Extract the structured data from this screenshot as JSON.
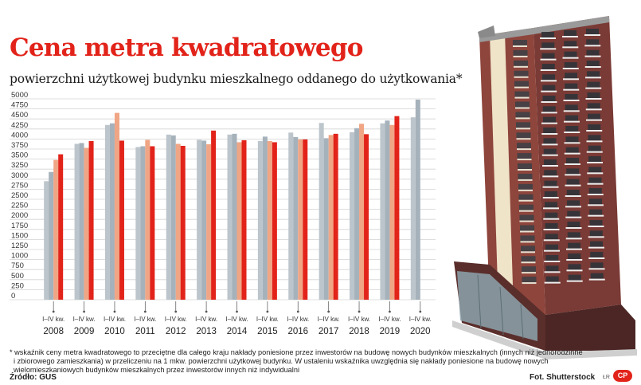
{
  "title": "Cena metra kwadratowego",
  "subtitle": "powierzchni użytkowej budynku mieszkalnego oddanego do użytkowania*",
  "footnote": {
    "line1": "* wskaźnik ceny metra kwadratowego to przeciętne dla całego kraju nakłady poniesione przez inwestorów na budowę nowych budynków mieszkalnych (innych niż jednorodzinne",
    "line2": "i zbiorowego zamieszkania) w przeliczeniu na 1 mkw. powierzchni użytkowej budynku. W ustaleniu wskaźnika uwzględnia się nakłady poniesione na budowę nowych",
    "line3": "wielomieszkaniowych budynków mieszkalnych przez inwestorów innych niż indywidualni"
  },
  "source": "Źródło: GUS",
  "photo_credit": "Fot. Shutterstock",
  "author": "ŁR",
  "logo": "CP",
  "colors": {
    "q1": "#bcc5cb",
    "q2": "#a6b2bb",
    "q3": "#f0a585",
    "q4": "#e2231a",
    "title": "#e2231a",
    "gridline": "#d4d4d4"
  },
  "chart_data": {
    "type": "bar",
    "title": "Cena metra kwadratowego",
    "subtitle": "powierzchni użytkowej budynku mieszkalnego oddanego do użytkowania*",
    "ylim": [
      0,
      5000
    ],
    "yticks": [
      0,
      250,
      500,
      750,
      1000,
      1250,
      1500,
      1750,
      2000,
      2250,
      2500,
      2750,
      3000,
      3250,
      3500,
      3750,
      4000,
      4250,
      4500,
      4750,
      5000
    ],
    "period_label": "I–IV kw.",
    "categories": [
      "2008",
      "2009",
      "2010",
      "2011",
      "2012",
      "2013",
      "2014",
      "2015",
      "2016",
      "2017",
      "2018",
      "2019",
      "2020"
    ],
    "quarters": [
      "I",
      "II",
      "III",
      "IV"
    ],
    "values": [
      [
        2950,
        3180,
        3480,
        3620
      ],
      [
        3880,
        3900,
        3780,
        3950
      ],
      [
        4350,
        4390,
        4650,
        3960
      ],
      [
        3800,
        3820,
        3980,
        3820
      ],
      [
        4110,
        4090,
        3880,
        3830
      ],
      [
        3980,
        3960,
        3870,
        4210
      ],
      [
        4110,
        4130,
        3920,
        3970
      ],
      [
        3950,
        4060,
        3950,
        3920
      ],
      [
        4160,
        4050,
        3990,
        3990
      ],
      [
        4400,
        4020,
        4100,
        4130
      ],
      [
        4170,
        4270,
        4380,
        4120
      ],
      [
        4390,
        4460,
        4350,
        4570
      ],
      [
        4540,
        4980,
        null,
        null
      ]
    ],
    "grid": true,
    "legend": "none"
  }
}
